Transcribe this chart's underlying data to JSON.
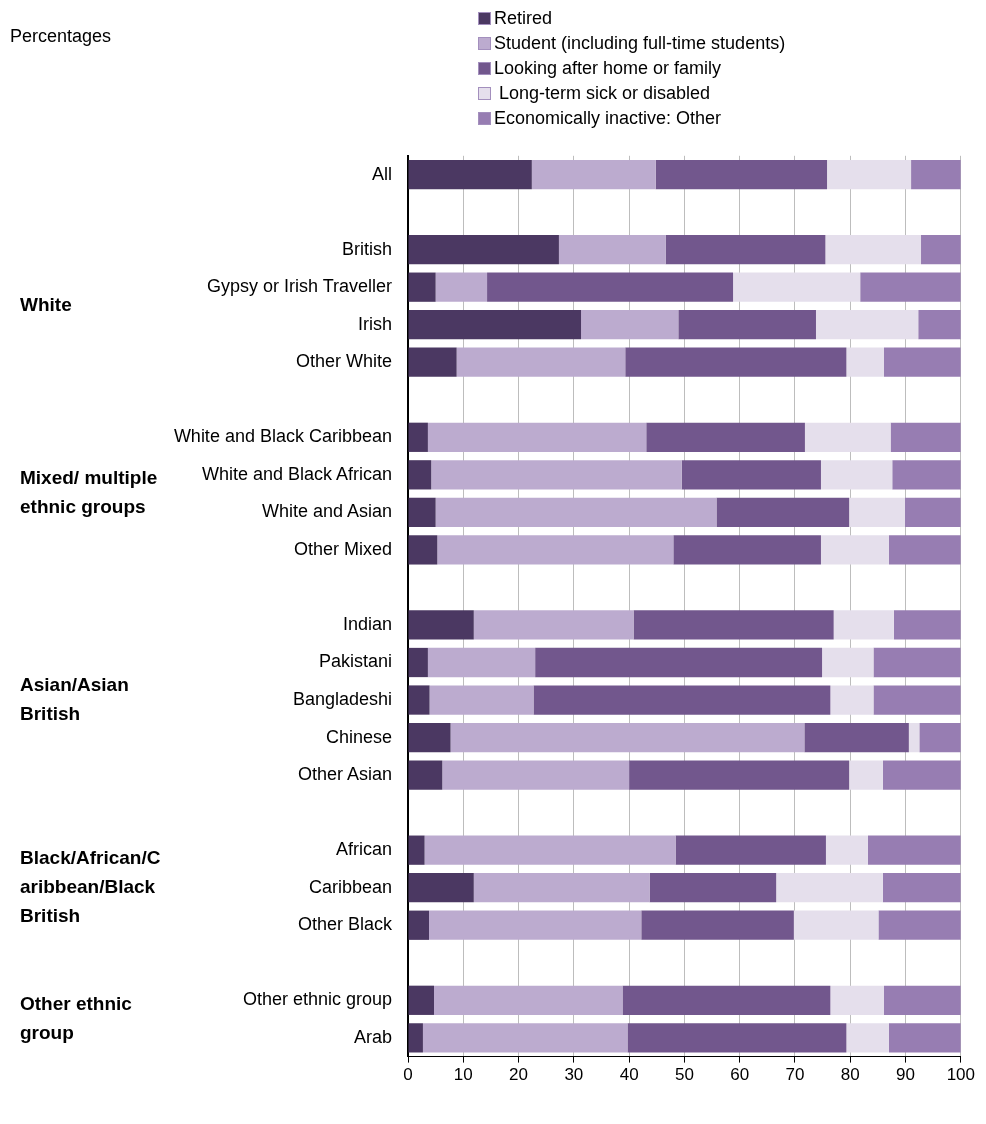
{
  "chart_data": {
    "type": "bar",
    "orientation": "horizontal",
    "stacked": true,
    "subtitle": "Percentages",
    "categories": [
      "All",
      null,
      "British",
      "Gypsy or Irish Traveller",
      "Irish",
      "Other White",
      null,
      "White and Black Caribbean",
      "White and Black African",
      "White and Asian",
      "Other Mixed",
      null,
      "Indian",
      "Pakistani",
      "Bangladeshi",
      "Chinese",
      "Other Asian",
      null,
      "African",
      "Caribbean",
      "Other Black",
      null,
      "Other ethnic group",
      "Arab"
    ],
    "series": [
      {
        "name": "Retired",
        "color": "#4b3862",
        "values": [
          22.4,
          null,
          27.3,
          5.0,
          31.3,
          8.8,
          null,
          3.6,
          4.2,
          5.0,
          5.3,
          null,
          11.9,
          3.6,
          3.9,
          7.7,
          6.2,
          null,
          3.0,
          11.9,
          3.8,
          null,
          4.7,
          2.7
        ]
      },
      {
        "name": "Student (including full-time students)",
        "color": "#bcabcf",
        "values": [
          22.4,
          null,
          19.3,
          9.3,
          17.6,
          30.5,
          null,
          39.5,
          45.3,
          50.8,
          42.7,
          null,
          28.9,
          19.4,
          18.8,
          64.0,
          33.8,
          null,
          45.4,
          31.8,
          38.4,
          null,
          34.1,
          37.0
        ]
      },
      {
        "name": "Looking after home or family",
        "color": "#72578d",
        "values": [
          31.0,
          null,
          28.9,
          44.5,
          24.9,
          40.0,
          null,
          28.7,
          25.2,
          24.0,
          26.7,
          null,
          36.2,
          51.9,
          53.7,
          18.9,
          39.8,
          null,
          27.2,
          22.9,
          27.6,
          null,
          37.6,
          39.6
        ]
      },
      {
        "name": " Long-term sick or disabled",
        "color": "#e5dfec",
        "values": [
          15.2,
          null,
          17.3,
          23.0,
          18.5,
          6.8,
          null,
          15.5,
          12.9,
          10.1,
          12.3,
          null,
          10.9,
          9.3,
          7.8,
          1.9,
          6.1,
          null,
          7.6,
          19.3,
          15.3,
          null,
          9.7,
          7.7
        ]
      },
      {
        "name": "Economically inactive: Other",
        "color": "#977db2",
        "values": [
          9.0,
          null,
          7.2,
          18.2,
          7.7,
          13.9,
          null,
          12.7,
          12.4,
          10.1,
          13.0,
          null,
          12.1,
          15.8,
          15.8,
          7.5,
          14.1,
          null,
          16.8,
          14.1,
          14.9,
          null,
          13.9,
          13.0
        ]
      }
    ],
    "annotations": [
      "White",
      "Mixed/ multiple ethnic groups",
      "Asian/Asian British",
      "Black/African/Caribbean/Black British",
      "Other ethnic group"
    ],
    "xlim": [
      0,
      100
    ],
    "xticks": [
      0,
      10,
      20,
      30,
      40,
      50,
      60,
      70,
      80,
      90,
      100
    ],
    "grid": "x",
    "legend": "top"
  }
}
